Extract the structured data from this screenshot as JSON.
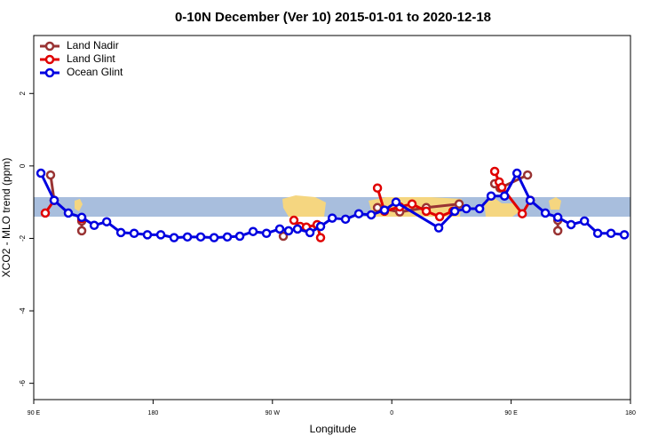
{
  "chart_data": {
    "type": "line",
    "title": "0-10N December (Ver 10)   2015-01-01 to 2020-12-18",
    "x_label": "Longitude",
    "y_label": "XCO2 - MLO trend (ppm)",
    "xlim": [
      90,
      540
    ],
    "xticks": [
      {
        "value": 90,
        "label": "90 E"
      },
      180,
      {
        "value": 270,
        "label": "90 W"
      },
      {
        "value": 360,
        "label": "0"
      },
      {
        "value": 450,
        "label": "90 E"
      },
      {
        "value": 540,
        "label": "180"
      }
    ],
    "ylim": [
      -6.45,
      3.6
    ],
    "yticks": [
      -6,
      -4,
      -2,
      0,
      2
    ],
    "legend": "top-left",
    "series": [
      {
        "name": "Land Nadir",
        "color": "#993333",
        "x": [
          102.7,
          105.4,
          null,
          126.2,
          126.2,
          null,
          278.2,
          null,
          303.7,
          null,
          349.2,
          366,
          386,
          410.8,
          null,
          437.6,
          441.6,
          462.4,
          null,
          485.2,
          485.2
        ],
        "values": [
          -0.25,
          -0.95,
          null,
          -1.52,
          -1.79,
          null,
          -1.94,
          null,
          -1.64,
          null,
          -1.15,
          -1.27,
          -1.15,
          -1.05,
          null,
          -0.49,
          -0.61,
          -0.25,
          null,
          -1.5,
          -1.79
        ]
      },
      {
        "name": "Land Glint",
        "color": "#e00000",
        "x": [
          98.7,
          105.4,
          null,
          126.2,
          null,
          286.2,
          290.9,
          295.6,
          303.7,
          306.3,
          null,
          349.2,
          354.5,
          366,
          375.3,
          386,
          396.1,
          406.1,
          null,
          437.6,
          441,
          443,
          458.4,
          464.4
        ],
        "values": [
          -1.3,
          -0.95,
          null,
          -1.45,
          null,
          -1.5,
          -1.67,
          -1.69,
          -1.62,
          -1.98,
          null,
          -0.61,
          -1.25,
          -1.13,
          -1.05,
          -1.25,
          -1.4,
          -1.25,
          null,
          -0.15,
          -0.44,
          -0.59,
          -1.32,
          -0.95
        ]
      },
      {
        "name": "Ocean Glint",
        "color": "#0000e0",
        "x": [
          95.4,
          105.4,
          116.1,
          126.2,
          135.6,
          145,
          155.7,
          165.7,
          175.7,
          185.8,
          195.8,
          205.9,
          215.9,
          226,
          236,
          245.4,
          255.4,
          265.5,
          275.5,
          282.2,
          288.9,
          298.3,
          306.3,
          315.1,
          325.1,
          335.1,
          344.5,
          354.5,
          363.2,
          395.4,
          407.5,
          416.2,
          426.2,
          434.9,
          445,
          454.4,
          464.4,
          475.8,
          485.2,
          495.2,
          505.3,
          515.3,
          525.3,
          535.4
        ],
        "values": [
          -0.2,
          -0.95,
          -1.3,
          -1.42,
          -1.64,
          -1.54,
          -1.84,
          -1.86,
          -1.9,
          -1.9,
          -1.98,
          -1.96,
          -1.96,
          -1.98,
          -1.96,
          -1.94,
          -1.81,
          -1.86,
          -1.74,
          -1.79,
          -1.74,
          -1.84,
          -1.67,
          -1.44,
          -1.47,
          -1.32,
          -1.35,
          -1.22,
          -1.0,
          -1.71,
          -1.25,
          -1.18,
          -1.18,
          -0.83,
          -0.83,
          -0.2,
          -0.95,
          -1.3,
          -1.42,
          -1.62,
          -1.52,
          -1.86,
          -1.86,
          -1.9
        ]
      }
    ]
  }
}
